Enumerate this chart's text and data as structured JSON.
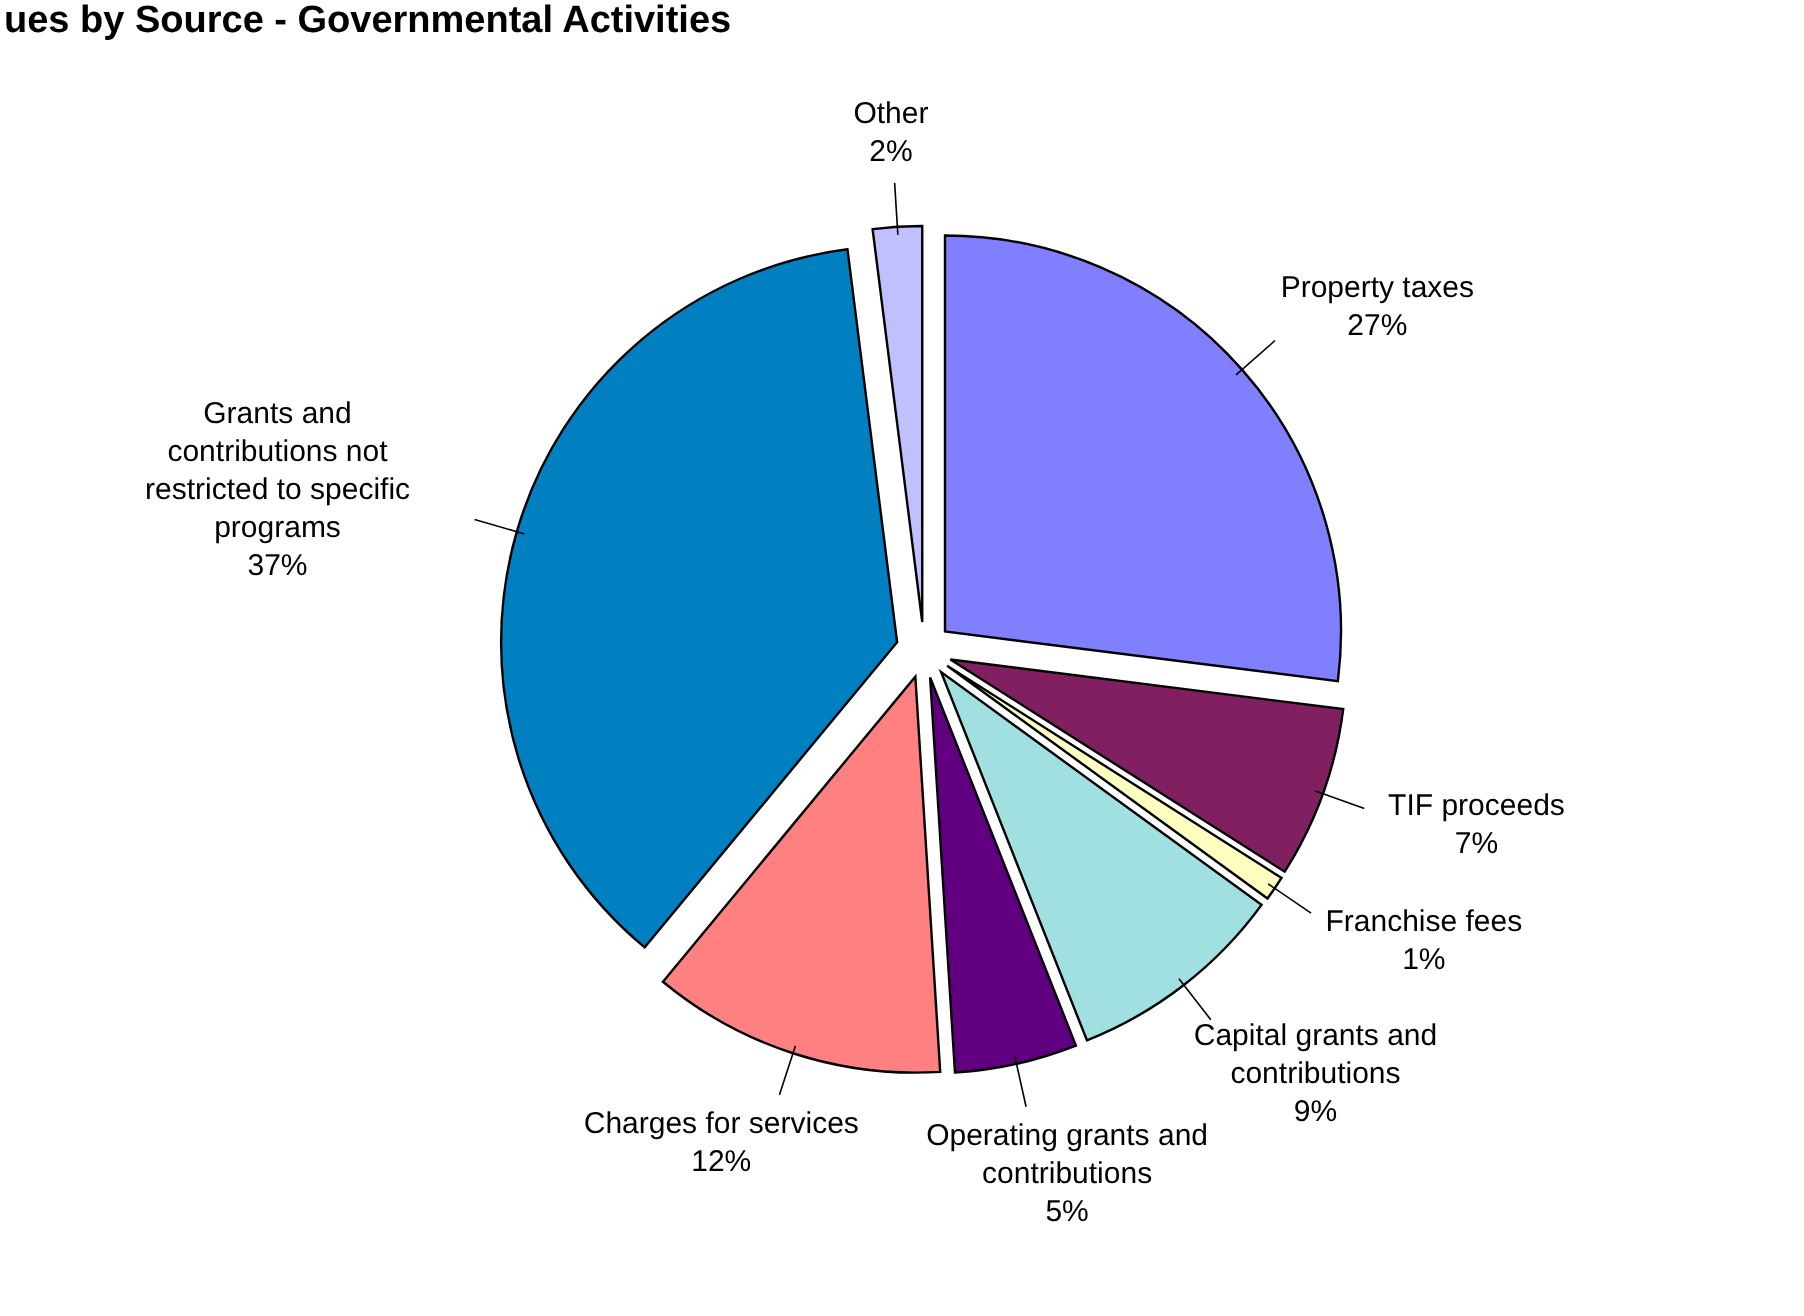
{
  "chart_data": {
    "type": "pie",
    "title": "ues by Source - Governmental Activities",
    "categories": [
      "Property taxes",
      "TIF proceeds",
      "Franchise fees",
      "Capital grants and contributions",
      "Operating grants and contributions",
      "Charges for services",
      "Grants and contributions not restricted to specific programs",
      "Other"
    ],
    "values": [
      27,
      7,
      1,
      9,
      5,
      12,
      37,
      2
    ],
    "colors": [
      "#8080ff",
      "#802060",
      "#ffffc0",
      "#a0e0e0",
      "#600080",
      "#ff8080",
      "#0080c0",
      "#c0c0ff"
    ],
    "value_labels": [
      "27%",
      "7%",
      "1%",
      "9%",
      "5%",
      "12%",
      "37%",
      "2%"
    ]
  }
}
